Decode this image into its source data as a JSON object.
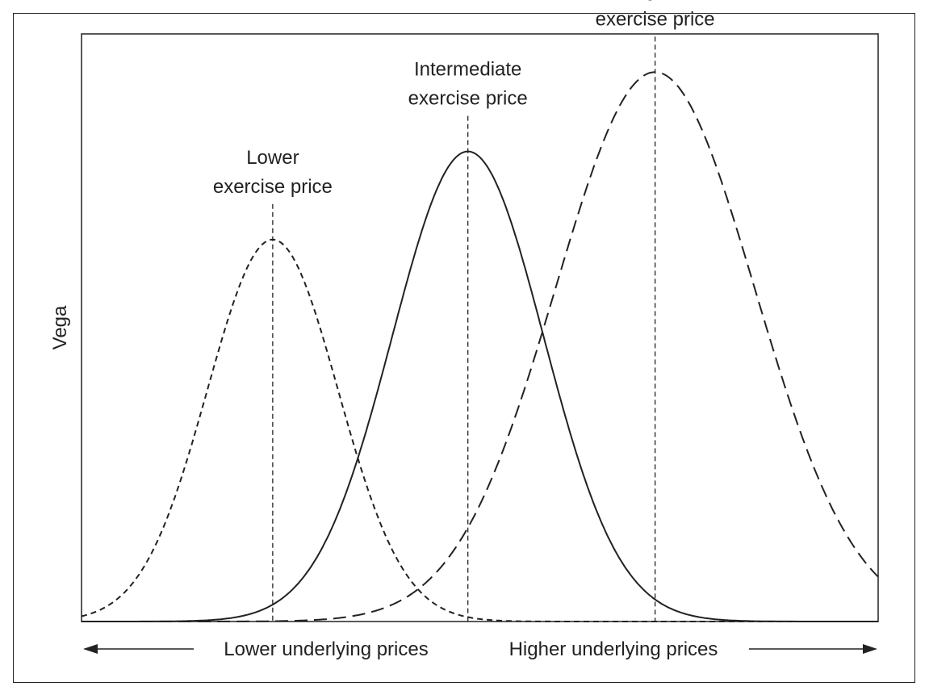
{
  "chart_data": {
    "type": "line",
    "title": "",
    "xlabel_left": "Lower underlying prices",
    "xlabel_right": "Higher underlying prices",
    "ylabel": "Vega",
    "xlim": [
      0,
      100
    ],
    "ylim": [
      0,
      100
    ],
    "grid": false,
    "series": [
      {
        "name": "Lower exercise price",
        "label_lines": [
          "Lower",
          "exercise price"
        ],
        "style": "short-dash",
        "peak_x": 24,
        "peak_y": 65,
        "sigma": 8.2
      },
      {
        "name": "Intermediate exercise price",
        "label_lines": [
          "Intermediate",
          "exercise price"
        ],
        "style": "solid",
        "peak_x": 48.5,
        "peak_y": 80,
        "sigma": 9.5
      },
      {
        "name": "Higher exercise price",
        "label_lines": [
          "Higher",
          "exercise price"
        ],
        "style": "long-dash",
        "peak_x": 72,
        "peak_y": 93.5,
        "sigma": 12.5
      }
    ]
  }
}
